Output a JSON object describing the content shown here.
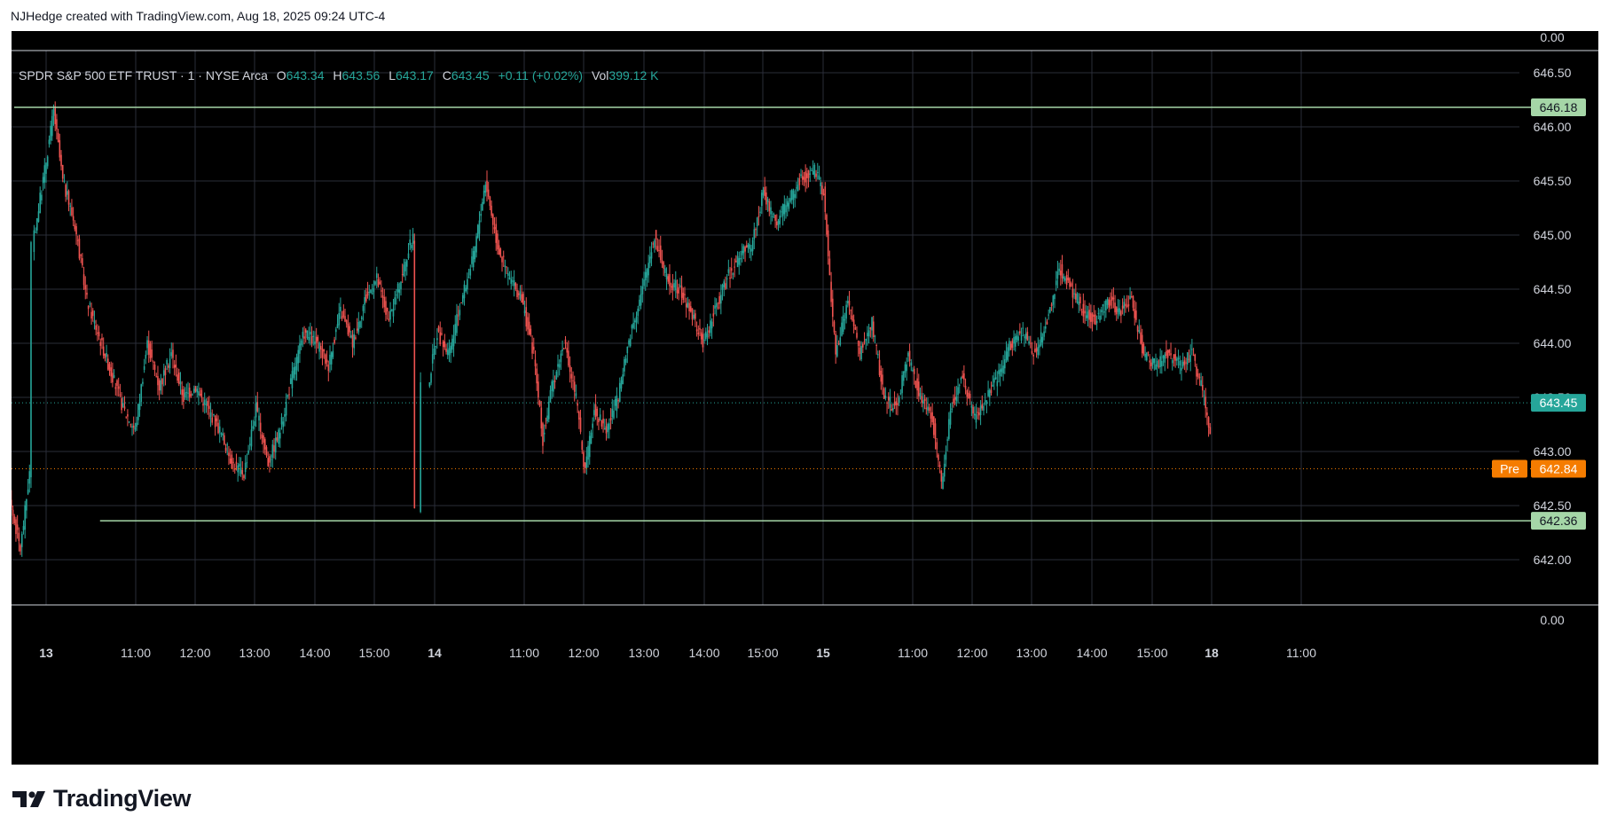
{
  "attribution": "NJHedge created with TradingView.com, Aug 18, 2025 09:24 UTC-4",
  "legend": {
    "symbol": "SPDR S&P 500 ETF TRUST · 1 · NYSE Arca",
    "o_label": "O",
    "o": "643.34",
    "h_label": "H",
    "h": "643.56",
    "l_label": "L",
    "l": "643.17",
    "c_label": "C",
    "c": "643.45",
    "change": "+0.11 (+0.02%)",
    "vol_label": "Vol",
    "vol": "399.12 K"
  },
  "brand": "TradingView",
  "colors": {
    "up": "#26a69a",
    "down": "#ef5350",
    "level": "#a5d6a7",
    "premarket": "#f57c00",
    "grid": "#2a2e39",
    "axis_text": "#d1d4dc"
  },
  "chart_data": {
    "type": "candlestick",
    "title": "SPDR S&P 500 ETF TRUST · 1 · NYSE Arca",
    "ylim": [
      641.6,
      646.8
    ],
    "yticks": [
      "646.50",
      "646.00",
      "645.50",
      "645.00",
      "644.50",
      "644.00",
      "643.50",
      "643.00",
      "642.50",
      "642.00"
    ],
    "y_top_pane_label": "0.00",
    "y_bottom_pane_label": "0.00",
    "xticks": [
      {
        "label": "13",
        "bold": true
      },
      {
        "label": "11:00"
      },
      {
        "label": "12:00"
      },
      {
        "label": "13:00"
      },
      {
        "label": "14:00"
      },
      {
        "label": "15:00"
      },
      {
        "label": "14",
        "bold": true
      },
      {
        "label": "11:00"
      },
      {
        "label": "12:00"
      },
      {
        "label": "13:00"
      },
      {
        "label": "14:00"
      },
      {
        "label": "15:00"
      },
      {
        "label": "15",
        "bold": true
      },
      {
        "label": "11:00"
      },
      {
        "label": "12:00"
      },
      {
        "label": "13:00"
      },
      {
        "label": "14:00"
      },
      {
        "label": "15:00"
      },
      {
        "label": "18",
        "bold": true
      },
      {
        "label": "11:00"
      }
    ],
    "price_path": [
      [
        0,
        642.3
      ],
      [
        2,
        642.6
      ],
      [
        4,
        642.1
      ],
      [
        5.5,
        642.8
      ],
      [
        6,
        644.9
      ],
      [
        8,
        645.6
      ],
      [
        9.5,
        646.15
      ],
      [
        11,
        645.5
      ],
      [
        13,
        645.1
      ],
      [
        15,
        644.4
      ],
      [
        18,
        643.9
      ],
      [
        21,
        643.4
      ],
      [
        23,
        643.2
      ],
      [
        25,
        644.0
      ],
      [
        27,
        643.6
      ],
      [
        29,
        643.9
      ],
      [
        31,
        643.5
      ],
      [
        33,
        643.6
      ],
      [
        35,
        643.4
      ],
      [
        37,
        643.2
      ],
      [
        39,
        642.9
      ],
      [
        41,
        642.8
      ],
      [
        43,
        643.4
      ],
      [
        45,
        642.9
      ],
      [
        47,
        643.2
      ],
      [
        49,
        643.7
      ],
      [
        51,
        644.1
      ],
      [
        53,
        644.0
      ],
      [
        55,
        643.8
      ],
      [
        57,
        644.3
      ],
      [
        59,
        644.0
      ],
      [
        61,
        644.4
      ],
      [
        63,
        644.6
      ],
      [
        65,
        644.2
      ],
      [
        67,
        644.6
      ],
      [
        69,
        645.0
      ],
      [
        70,
        642.5
      ],
      [
        71.5,
        643.6
      ],
      [
        73,
        644.1
      ],
      [
        75,
        643.9
      ],
      [
        77,
        644.4
      ],
      [
        79,
        644.8
      ],
      [
        81,
        645.5
      ],
      [
        83,
        644.9
      ],
      [
        85,
        644.6
      ],
      [
        87,
        644.4
      ],
      [
        89,
        643.9
      ],
      [
        90.5,
        643.1
      ],
      [
        92,
        643.6
      ],
      [
        94,
        644.0
      ],
      [
        96,
        643.5
      ],
      [
        97.5,
        642.8
      ],
      [
        99,
        643.4
      ],
      [
        101,
        643.2
      ],
      [
        103,
        643.5
      ],
      [
        105,
        644.1
      ],
      [
        107,
        644.5
      ],
      [
        109,
        645.0
      ],
      [
        111,
        644.6
      ],
      [
        113,
        644.5
      ],
      [
        115,
        644.3
      ],
      [
        117,
        644.0
      ],
      [
        119,
        644.3
      ],
      [
        121,
        644.6
      ],
      [
        123,
        644.8
      ],
      [
        125,
        644.9
      ],
      [
        127,
        645.4
      ],
      [
        129,
        645.1
      ],
      [
        131,
        645.3
      ],
      [
        133,
        645.5
      ],
      [
        135.5,
        645.6
      ],
      [
        137,
        645.4
      ],
      [
        138,
        644.6
      ],
      [
        139,
        643.9
      ],
      [
        141,
        644.4
      ],
      [
        143,
        643.9
      ],
      [
        145,
        644.2
      ],
      [
        147,
        643.5
      ],
      [
        149,
        643.4
      ],
      [
        151,
        643.9
      ],
      [
        153,
        643.5
      ],
      [
        155,
        643.3
      ],
      [
        156.5,
        642.7
      ],
      [
        158,
        643.4
      ],
      [
        160,
        643.7
      ],
      [
        162,
        643.3
      ],
      [
        164,
        643.5
      ],
      [
        166,
        643.7
      ],
      [
        168,
        644.0
      ],
      [
        170,
        644.1
      ],
      [
        172,
        643.9
      ],
      [
        174,
        644.2
      ],
      [
        176,
        644.7
      ],
      [
        178,
        644.5
      ],
      [
        180,
        644.3
      ],
      [
        182,
        644.2
      ],
      [
        184,
        644.4
      ],
      [
        186,
        644.3
      ],
      [
        188,
        644.4
      ],
      [
        190,
        643.9
      ],
      [
        192,
        643.8
      ],
      [
        194,
        643.9
      ],
      [
        196,
        643.8
      ],
      [
        198,
        643.9
      ],
      [
        199.5,
        643.6
      ],
      [
        201,
        643.2
      ]
    ],
    "lines": [
      {
        "type": "horizontal",
        "price": 646.18,
        "label": "646.18",
        "color": "#a5d6a7",
        "x_start_fraction": 0.0
      },
      {
        "type": "horizontal",
        "price": 642.36,
        "label": "642.36",
        "color": "#a5d6a7",
        "x_start_fraction": 0.065
      },
      {
        "type": "current",
        "price": 643.45,
        "label": "643.45",
        "color": "#26a69a"
      },
      {
        "type": "premarket",
        "price": 642.84,
        "label": "642.84",
        "tag": "Pre",
        "color": "#f57c00"
      }
    ]
  }
}
